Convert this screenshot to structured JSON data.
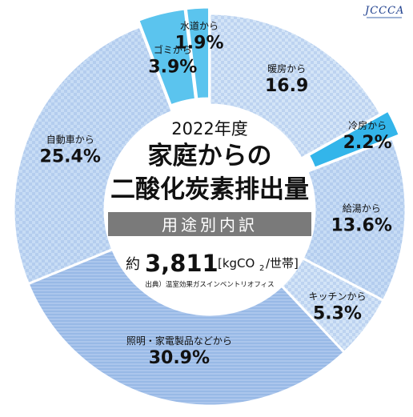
{
  "logo": {
    "text": "JCCCA"
  },
  "center": {
    "year": "2022年度",
    "title_line1": "家庭からの",
    "title_line2": "二酸化炭素排出量",
    "subtitle": "用途別内訳",
    "total_prefix": "約",
    "total_value": "3,811",
    "total_unit_a": "[kgCO",
    "total_unit_sub": "2",
    "total_unit_b": "/世帯]",
    "source": "出典）温室効果ガスインベントリオフィス"
  },
  "chart_data": {
    "type": "pie",
    "title": "家庭からの二酸化炭素排出量",
    "subtitle": "用途別内訳",
    "slices": [
      {
        "label": "暖房から",
        "value": 16.9,
        "display": "16.9",
        "color": "#c7dcf5"
      },
      {
        "label": "冷房から",
        "value": 2.2,
        "display": "2.2%",
        "color": "#33b5ea"
      },
      {
        "label": "給湯から",
        "value": 13.6,
        "display": "13.6%",
        "color": "#c7dcf5"
      },
      {
        "label": "キッチンから",
        "value": 5.3,
        "display": "5.3%",
        "color": "#c7dcf5"
      },
      {
        "label": "照明・家電製品などから",
        "value": 30.9,
        "display": "30.9%",
        "color": "#a9c6ec"
      },
      {
        "label": "自動車から",
        "value": 25.4,
        "display": "25.4%",
        "color": "#c7dcf5"
      },
      {
        "label": "ゴミから",
        "value": 3.9,
        "display": "3.9%",
        "color": "#5bc4ee"
      },
      {
        "label": "水道から",
        "value": 1.9,
        "display": "1.9%",
        "color": "#5bc4ee"
      }
    ]
  }
}
